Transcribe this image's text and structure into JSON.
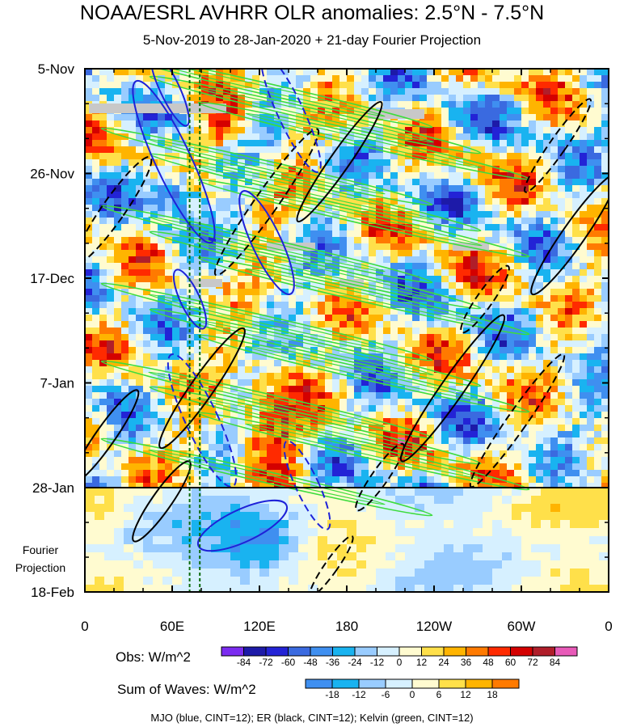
{
  "title": "NOAA/ESRL AVHRR OLR anomalies: 2.5°N - 7.5°N",
  "subtitle": "5-Nov-2019 to 28-Jan-2020 + 21-day Fourier Projection",
  "fourier_label_line1": "Fourier",
  "fourier_label_line2": "Projection",
  "footer": "MJO (blue, CINT=12); ER (black, CINT=12); Kelvin (green, CINT=12)",
  "chart_data": {
    "type": "heatmap",
    "x_axis": {
      "ticks": [
        "0",
        "60E",
        "120E",
        "180",
        "120W",
        "60W",
        "0"
      ],
      "range_deg_east": [
        0,
        360
      ]
    },
    "y_axis": {
      "ticks": [
        "5-Nov",
        "26-Nov",
        "17-Dec",
        "7-Jan",
        "28-Jan",
        "18-Feb"
      ],
      "reversed": true
    },
    "obs_colorbar": {
      "label": "Obs: W/m^2",
      "levels": [
        "-84",
        "-72",
        "-60",
        "-48",
        "-36",
        "-24",
        "-12",
        "0",
        "12",
        "24",
        "36",
        "48",
        "60",
        "72",
        "84"
      ],
      "colors": [
        "#7b2cf0",
        "#1d1aa8",
        "#2323d6",
        "#3a6ae0",
        "#3f8ff0",
        "#19b3f0",
        "#99ccff",
        "#d6f0ff",
        "#fffbd0",
        "#ffe04a",
        "#ffb400",
        "#ff7a00",
        "#ff2a00",
        "#d40000",
        "#b01e2a",
        "#e85ab8"
      ]
    },
    "waves_colorbar": {
      "label": "Sum of Waves: W/m^2",
      "levels": [
        "-18",
        "-12",
        "-6",
        "0",
        "6",
        "12",
        "18"
      ],
      "colors": [
        "#3f8ff0",
        "#19b3f0",
        "#99ccff",
        "#d6f0ff",
        "#fffbd0",
        "#ffe04a",
        "#ffb400",
        "#ff7a00"
      ]
    },
    "series": [
      {
        "name": "MJO",
        "color": "#1e22d8",
        "cint": 12
      },
      {
        "name": "ER",
        "color": "#000000",
        "cint": 12
      },
      {
        "name": "Kelvin",
        "color": "#3ddc3d",
        "cint": 12
      }
    ],
    "vertical_markers_deg_east": [
      72,
      79
    ],
    "fourier_projection_start": "28-Jan"
  }
}
